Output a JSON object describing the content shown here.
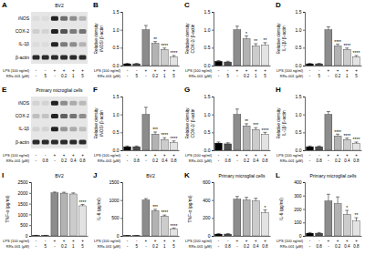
{
  "chart_data": [
    {
      "type": "blot",
      "title": "A",
      "subtitle": "BV2",
      "rows": [
        "iNOS",
        "COX-2",
        "IL-1β",
        "β-actin"
      ],
      "categories": [
        "-",
        "5",
        "-",
        "0.2",
        "1",
        "5"
      ],
      "category_label": "RRx-001 (μM)",
      "treatment": {
        "label": "LPS (100 ng/ml)",
        "values": [
          "-",
          "-",
          "+",
          "+",
          "+",
          "+"
        ]
      }
    },
    {
      "type": "bar",
      "title": "B",
      "ylabel": [
        "Relative density",
        "iNOS/ β-actin"
      ],
      "categories": [
        "-",
        "5",
        "-",
        "0.2",
        "1",
        "5"
      ],
      "category_label": "RRx-001 (μM)",
      "treatment": {
        "label": "LPS (100 ng/ml)",
        "values": [
          "-",
          "-",
          "+",
          "+",
          "+",
          "+"
        ]
      },
      "values": [
        0.05,
        0.05,
        1.0,
        0.62,
        0.45,
        0.25
      ],
      "errors": [
        0.01,
        0.01,
        0.12,
        0.05,
        0.04,
        0.03
      ],
      "significance": [
        null,
        null,
        null,
        "**",
        "****",
        "****"
      ],
      "colors": [
        "#000000",
        "#4d4d4d",
        "#8c8c8c",
        "#b3b3b3",
        "#cccccc",
        "#e3e3e3"
      ],
      "ylim": [
        0,
        1.5
      ],
      "yticks": [
        {
          "value": 0,
          "label": "0.0"
        },
        0.5,
        {
          "value": 1,
          "label": "1.0"
        },
        1.5
      ]
    },
    {
      "type": "bar",
      "title": "C",
      "ylabel": [
        "Relative density",
        "COX-2/ β-actin"
      ],
      "categories": [
        "-",
        "5",
        "-",
        "0.2",
        "1",
        "5"
      ],
      "category_label": "RRx-001 (μM)",
      "treatment": {
        "label": "LPS (100 ng/ml)",
        "values": [
          "-",
          "-",
          "+",
          "+",
          "+",
          "+"
        ]
      },
      "values": [
        0.12,
        0.1,
        1.0,
        0.75,
        0.55,
        0.58
      ],
      "errors": [
        0.02,
        0.02,
        0.1,
        0.08,
        0.06,
        0.06
      ],
      "significance": [
        null,
        null,
        null,
        "*",
        "**",
        "**"
      ],
      "colors": [
        "#000000",
        "#4d4d4d",
        "#8c8c8c",
        "#b3b3b3",
        "#cccccc",
        "#e3e3e3"
      ],
      "ylim": [
        0,
        1.5
      ],
      "yticks": [
        {
          "value": 0,
          "label": "0.0"
        },
        0.5,
        {
          "value": 1,
          "label": "1.0"
        },
        1.5
      ]
    },
    {
      "type": "bar",
      "title": "D",
      "ylabel": [
        "Relative density",
        "IL-1β/ β-actin"
      ],
      "categories": [
        "-",
        "5",
        "-",
        "0.2",
        "1",
        "5"
      ],
      "category_label": "RRx-001 (μM)",
      "treatment": {
        "label": "LPS (100 ng/ml)",
        "values": [
          "-",
          "-",
          "+",
          "+",
          "+",
          "+"
        ]
      },
      "values": [
        0.05,
        0.05,
        1.0,
        0.55,
        0.45,
        0.25
      ],
      "errors": [
        0.01,
        0.01,
        0.08,
        0.05,
        0.04,
        0.03
      ],
      "significance": [
        null,
        null,
        null,
        "****",
        "****",
        "****"
      ],
      "colors": [
        "#000000",
        "#4d4d4d",
        "#8c8c8c",
        "#b3b3b3",
        "#cccccc",
        "#e3e3e3"
      ],
      "ylim": [
        0,
        1.5
      ],
      "yticks": [
        {
          "value": 0,
          "label": "0.0"
        },
        0.5,
        {
          "value": 1,
          "label": "1.0"
        },
        1.5
      ]
    },
    {
      "type": "blot",
      "title": "E",
      "subtitle": "Primary microglial cells",
      "rows": [
        "iNOS",
        "COX-2",
        "IL-1β",
        "β-actin"
      ],
      "categories": [
        "-",
        "0.8",
        "-",
        "0.2",
        "0.4",
        "0.8"
      ],
      "category_label": "RRx-001 (μM)",
      "treatment": {
        "label": "LPS (100 ng/ml)",
        "values": [
          "-",
          "-",
          "+",
          "+",
          "+",
          "+"
        ]
      }
    },
    {
      "type": "bar",
      "title": "F",
      "ylabel": [
        "Relative density",
        "iNOS/ β-actin"
      ],
      "categories": [
        "-",
        "0.8",
        "-",
        "0.2",
        "0.4",
        "0.8"
      ],
      "category_label": "RRx-001 (μM)",
      "treatment": {
        "label": "LPS (100 ng/ml)",
        "values": [
          "-",
          "-",
          "+",
          "+",
          "+",
          "+"
        ]
      },
      "values": [
        0.1,
        0.1,
        1.0,
        0.45,
        0.3,
        0.22
      ],
      "errors": [
        0.02,
        0.02,
        0.2,
        0.06,
        0.05,
        0.04
      ],
      "significance": [
        null,
        null,
        null,
        "***",
        "****",
        "****"
      ],
      "colors": [
        "#000000",
        "#4d4d4d",
        "#8c8c8c",
        "#b3b3b3",
        "#cccccc",
        "#e3e3e3"
      ],
      "ylim": [
        0,
        1.5
      ],
      "yticks": [
        {
          "value": 0,
          "label": "0.0"
        },
        0.5,
        {
          "value": 1,
          "label": "1.0"
        },
        1.5
      ]
    },
    {
      "type": "bar",
      "title": "G",
      "ylabel": [
        "Relative density",
        "COX-2/ β-actin"
      ],
      "categories": [
        "-",
        "0.8",
        "-",
        "0.2",
        "0.4",
        "0.8"
      ],
      "category_label": "RRx-001 (μM)",
      "treatment": {
        "label": "LPS (100 ng/ml)",
        "values": [
          "-",
          "-",
          "+",
          "+",
          "+",
          "+"
        ]
      },
      "values": [
        0.2,
        0.18,
        1.0,
        0.68,
        0.58,
        0.45
      ],
      "errors": [
        0.03,
        0.03,
        0.15,
        0.06,
        0.05,
        0.05
      ],
      "significance": [
        null,
        null,
        null,
        "**",
        "***",
        "****"
      ],
      "colors": [
        "#000000",
        "#4d4d4d",
        "#8c8c8c",
        "#b3b3b3",
        "#cccccc",
        "#e3e3e3"
      ],
      "ylim": [
        0,
        1.5
      ],
      "yticks": [
        {
          "value": 0,
          "label": "0.0"
        },
        0.5,
        {
          "value": 1,
          "label": "1.0"
        },
        1.5
      ]
    },
    {
      "type": "bar",
      "title": "H",
      "ylabel": [
        "Relative density",
        "IL-1β/ β-actin"
      ],
      "categories": [
        "-",
        "0.8",
        "-",
        "0.2",
        "0.4",
        "0.8"
      ],
      "category_label": "RRx-001 (μM)",
      "treatment": {
        "label": "LPS (100 ng/ml)",
        "values": [
          "-",
          "-",
          "+",
          "+",
          "+",
          "+"
        ]
      },
      "values": [
        0.1,
        0.1,
        1.0,
        0.4,
        0.3,
        0.2
      ],
      "errors": [
        0.02,
        0.02,
        0.08,
        0.05,
        0.04,
        0.03
      ],
      "significance": [
        null,
        null,
        null,
        "****",
        "****",
        "****"
      ],
      "colors": [
        "#000000",
        "#4d4d4d",
        "#8c8c8c",
        "#b3b3b3",
        "#cccccc",
        "#e3e3e3"
      ],
      "ylim": [
        0,
        1.5
      ],
      "yticks": [
        {
          "value": 0,
          "label": "0.0"
        },
        0.5,
        {
          "value": 1,
          "label": "1.0"
        },
        1.5
      ]
    },
    {
      "type": "bar",
      "title": "I",
      "subtitle": "BV2",
      "ylabel": [
        "TNF-α (pg/ml)"
      ],
      "categories": [
        "-",
        "5",
        "-",
        "0.2",
        "1",
        "5"
      ],
      "category_label": "RRx-001 (μM)",
      "treatment": {
        "label": "LPS (100 ng/ml)",
        "values": [
          "-",
          "-",
          "+",
          "+",
          "+",
          "+"
        ]
      },
      "values": [
        20,
        20,
        2000,
        1990,
        1950,
        1400
      ],
      "errors": [
        5,
        5,
        40,
        40,
        50,
        60
      ],
      "significance": [
        null,
        null,
        null,
        null,
        null,
        "****"
      ],
      "colors": [
        "#000000",
        "#4d4d4d",
        "#8c8c8c",
        "#b3b3b3",
        "#cccccc",
        "#e3e3e3"
      ],
      "ylim": [
        0,
        2500
      ],
      "yticks": [
        0,
        500,
        1000,
        1500,
        2000,
        2500
      ]
    },
    {
      "type": "bar",
      "title": "J",
      "subtitle": "BV2",
      "ylabel": [
        "IL-6 (pg/ml)"
      ],
      "categories": [
        "-",
        "5",
        "-",
        "0.2",
        "1",
        "5"
      ],
      "category_label": "RRx-001 (μM)",
      "treatment": {
        "label": "LPS (100 ng/ml)",
        "values": [
          "-",
          "-",
          "+",
          "+",
          "+",
          "+"
        ]
      },
      "values": [
        10,
        10,
        1000,
        700,
        550,
        200
      ],
      "errors": [
        2,
        2,
        40,
        40,
        30,
        20
      ],
      "significance": [
        null,
        null,
        null,
        "***",
        "****",
        "****"
      ],
      "colors": [
        "#000000",
        "#4d4d4d",
        "#8c8c8c",
        "#b3b3b3",
        "#cccccc",
        "#e3e3e3"
      ],
      "ylim": [
        0,
        1500
      ],
      "yticks": [
        0,
        500,
        1000,
        1500
      ]
    },
    {
      "type": "bar",
      "title": "K",
      "subtitle": "Primary microglial cells",
      "ylabel": [
        "TNF-α (pg/ml)"
      ],
      "categories": [
        "-",
        "0.8",
        "-",
        "0.2",
        "0.4",
        "0.8"
      ],
      "category_label": "RRx-001 (μM)",
      "treatment": {
        "label": "LPS (100 ng/ml)",
        "values": [
          "-",
          "-",
          "+",
          "+",
          "+",
          "+"
        ]
      },
      "values": [
        20,
        20,
        410,
        400,
        390,
        260
      ],
      "errors": [
        5,
        5,
        30,
        30,
        30,
        30
      ],
      "significance": [
        null,
        null,
        null,
        null,
        null,
        "*"
      ],
      "colors": [
        "#000000",
        "#4d4d4d",
        "#8c8c8c",
        "#b3b3b3",
        "#cccccc",
        "#e3e3e3"
      ],
      "ylim": [
        0,
        600
      ],
      "yticks": [
        0,
        200,
        400,
        600
      ]
    },
    {
      "type": "bar",
      "title": "L",
      "subtitle": "Primary microglial cells",
      "ylabel": [
        "IL-6 (pg/ml)"
      ],
      "categories": [
        "-",
        "0.8",
        "-",
        "0.2",
        "0.4",
        "0.8"
      ],
      "category_label": "RRx-001 (μM)",
      "treatment": {
        "label": "LPS (100 ng/ml)",
        "values": [
          "-",
          "-",
          "+",
          "+",
          "+",
          "+"
        ]
      },
      "values": [
        20,
        20,
        260,
        240,
        160,
        110
      ],
      "errors": [
        5,
        5,
        50,
        50,
        30,
        25
      ],
      "significance": [
        null,
        null,
        null,
        null,
        "*",
        "**"
      ],
      "colors": [
        "#000000",
        "#4d4d4d",
        "#8c8c8c",
        "#b3b3b3",
        "#cccccc",
        "#e3e3e3"
      ],
      "ylim": [
        0,
        400
      ],
      "yticks": [
        0,
        100,
        200,
        300,
        400
      ]
    }
  ]
}
